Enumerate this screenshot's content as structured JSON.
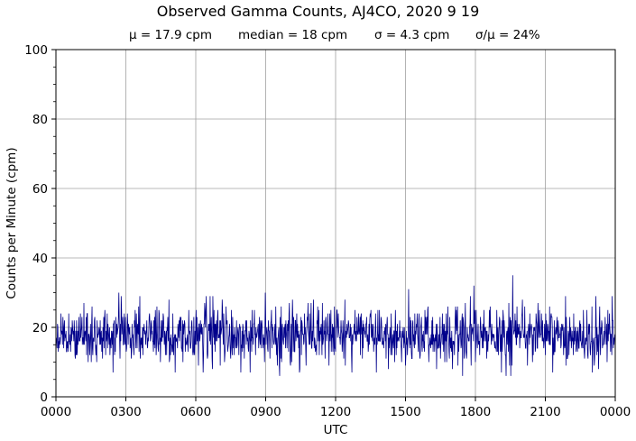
{
  "chart_data": {
    "type": "line",
    "title": "Observed Gamma Counts, AJ4CO, 2020 9 19",
    "stats": [
      "μ = 17.9 cpm",
      "median = 18 cpm",
      "σ = 4.3 cpm",
      "σ/μ = 24%"
    ],
    "xlabel": "UTC",
    "ylabel": "Counts per Minute (cpm)",
    "x_ticks": [
      "0000",
      "0300",
      "0600",
      "0900",
      "1200",
      "1500",
      "1800",
      "2100",
      "0000"
    ],
    "y_ticks": [
      "0",
      "20",
      "40",
      "60",
      "80",
      "100"
    ],
    "ylim": [
      0,
      100
    ],
    "xlim_minutes": [
      0,
      1440
    ],
    "grid": true,
    "series": [
      {
        "color": "#00008b",
        "approx_mean": 17.9,
        "approx_sd": 4.3,
        "approx_min": 6,
        "approx_max": 35,
        "sample_interval_minutes": 1,
        "count": 1440
      }
    ],
    "notable_peaks": [
      {
        "time": "1936",
        "value": 35
      },
      {
        "time": "1756",
        "value": 32
      },
      {
        "time": "1508",
        "value": 31
      },
      {
        "time": "0242",
        "value": 30
      },
      {
        "time": "0859",
        "value": 30
      }
    ]
  }
}
